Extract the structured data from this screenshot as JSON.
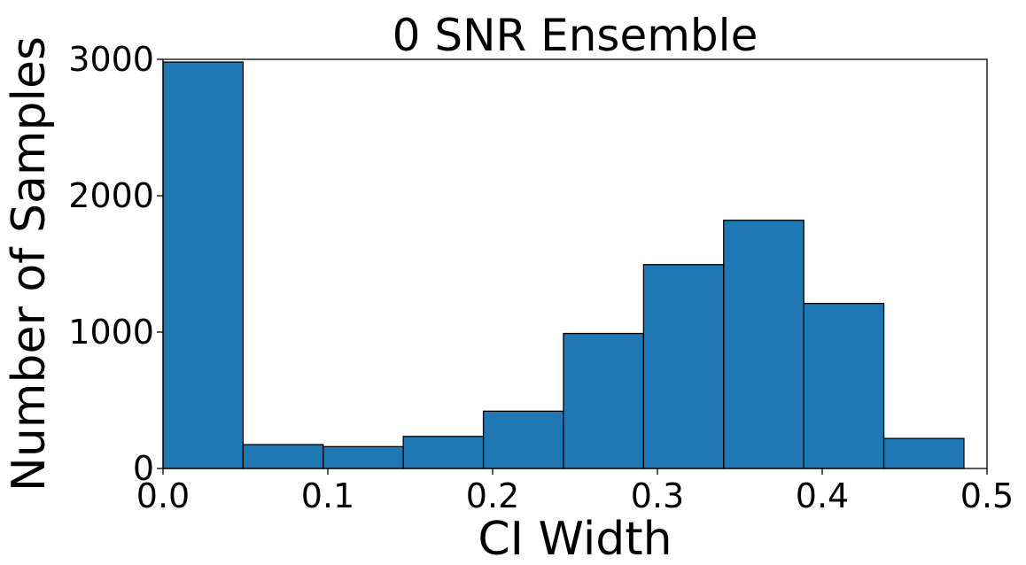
{
  "chart_data": {
    "type": "bar",
    "title": "0 SNR Ensemble",
    "xlabel": "CI Width",
    "ylabel": "Number of Samples",
    "bins": [
      {
        "start": 0.0,
        "end": 0.0486,
        "count": 2980
      },
      {
        "start": 0.0486,
        "end": 0.0972,
        "count": 175
      },
      {
        "start": 0.0972,
        "end": 0.1458,
        "count": 160
      },
      {
        "start": 0.1458,
        "end": 0.1944,
        "count": 235
      },
      {
        "start": 0.1944,
        "end": 0.243,
        "count": 420
      },
      {
        "start": 0.243,
        "end": 0.2916,
        "count": 990
      },
      {
        "start": 0.2916,
        "end": 0.3402,
        "count": 1495
      },
      {
        "start": 0.3402,
        "end": 0.3888,
        "count": 1820
      },
      {
        "start": 0.3888,
        "end": 0.4374,
        "count": 1210
      },
      {
        "start": 0.4374,
        "end": 0.486,
        "count": 220
      }
    ],
    "xlim": [
      0,
      0.5
    ],
    "ylim": [
      0,
      3000
    ],
    "xticks": [
      0.0,
      0.1,
      0.2,
      0.3,
      0.4,
      0.5
    ],
    "xtick_labels": [
      "0.0",
      "0.1",
      "0.2",
      "0.3",
      "0.4",
      "0.5"
    ],
    "yticks": [
      0,
      1000,
      2000,
      3000
    ],
    "ytick_labels": [
      "0",
      "1000",
      "2000",
      "3000"
    ],
    "grid": false,
    "bar_color": "#1f77b4",
    "edge_color": "#000000"
  }
}
